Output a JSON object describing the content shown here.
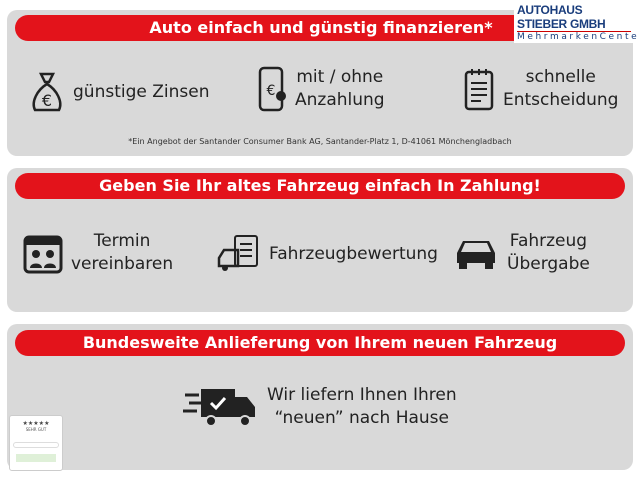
{
  "logo": {
    "line1": "AUTOHAUS STIEBER GMBH",
    "line2": "MehrmarkenCenter"
  },
  "section1": {
    "banner": "Auto einfach und günstig finanzieren*",
    "features": [
      {
        "icon": "money-bag-icon",
        "text": "günstige Zinsen"
      },
      {
        "icon": "phone-euro-icon",
        "line1": "mit / ohne",
        "line2": "Anzahlung"
      },
      {
        "icon": "notepad-icon",
        "line1": "schnelle",
        "line2": "Entscheidung"
      }
    ],
    "footnote": "*Ein Angebot der Santander Consumer Bank AG, Santander-Platz 1, D-41061 Mönchengladbach"
  },
  "section2": {
    "banner": "Geben Sie Ihr altes Fahrzeug einfach In Zahlung!",
    "features": [
      {
        "icon": "calendar-people-icon",
        "line1": "Termin",
        "line2": "vereinbaren"
      },
      {
        "icon": "car-checklist-icon",
        "text": "Fahrzeugbewertung"
      },
      {
        "icon": "suv-icon",
        "line1": "Fahrzeug",
        "line2": "Übergabe"
      }
    ]
  },
  "section3": {
    "banner": "Bundesweite Anlieferung von Ihrem neuen Fahrzeug",
    "feature": {
      "icon": "delivery-truck-icon",
      "line1": "Wir liefern Ihnen Ihren",
      "line2": "“neuen” nach Hause"
    }
  },
  "badge": {
    "stars": "★★★★★",
    "rating": "SEHR GUT"
  },
  "colors": {
    "accent": "#e3131b",
    "panel": "#d9d9d9"
  }
}
